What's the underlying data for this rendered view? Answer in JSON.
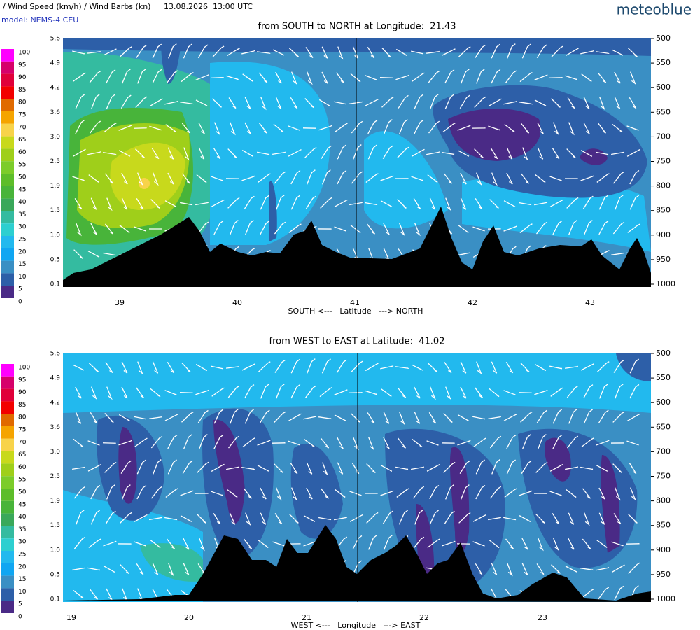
{
  "header": {
    "title": "/ Wind Speed (km/h) / Wind Barbs (kn)",
    "date": "13.08.2026  13:00 UTC",
    "model": "model: NEMS-4 CEU",
    "logo": "meteoblue"
  },
  "legend": {
    "levels": [
      "100",
      "95",
      "90",
      "85",
      "80",
      "75",
      "70",
      "65",
      "60",
      "55",
      "50",
      "45",
      "40",
      "35",
      "30",
      "25",
      "20",
      "15",
      "10",
      "5",
      "0"
    ],
    "colors": [
      "#ff00ff",
      "#d6006b",
      "#e0003a",
      "#f20000",
      "#e06a00",
      "#f5a400",
      "#f8d34a",
      "#c8d91c",
      "#9fcf1a",
      "#7ccc2a",
      "#5dbd2a",
      "#48b43a",
      "#3aa85a",
      "#34bba0",
      "#2dcfd0",
      "#22b9ee",
      "#10a6f2",
      "#3a8fc4",
      "#2d5fa8",
      "#4a2a86"
    ]
  },
  "panels": [
    {
      "title": "from SOUTH to NORTH at Longitude:  21.43",
      "height_labels": [
        "5.6",
        "4.9",
        "4.2",
        "3.6",
        "3.0",
        "2.5",
        "1.9",
        "1.5",
        "1.0",
        "0.5",
        "0.1"
      ],
      "pressure_labels": [
        "500",
        "550",
        "600",
        "650",
        "700",
        "750",
        "800",
        "850",
        "900",
        "950",
        "1000"
      ],
      "x_labels": [
        "39",
        "40",
        "41",
        "42",
        "43"
      ],
      "x_axis_label": "SOUTH <---   Latitude   ---> NORTH"
    },
    {
      "title": "from WEST to EAST at Latitude:  41.02",
      "height_labels": [
        "5.6",
        "4.9",
        "4.2",
        "3.6",
        "3.0",
        "2.5",
        "1.9",
        "1.5",
        "1.0",
        "0.5",
        "0.1"
      ],
      "pressure_labels": [
        "500",
        "550",
        "600",
        "650",
        "700",
        "750",
        "800",
        "850",
        "900",
        "950",
        "1000"
      ],
      "x_labels": [
        "19",
        "20",
        "21",
        "22",
        "23"
      ],
      "x_axis_label": "WEST <---   Longitude   ---> EAST"
    }
  ]
}
